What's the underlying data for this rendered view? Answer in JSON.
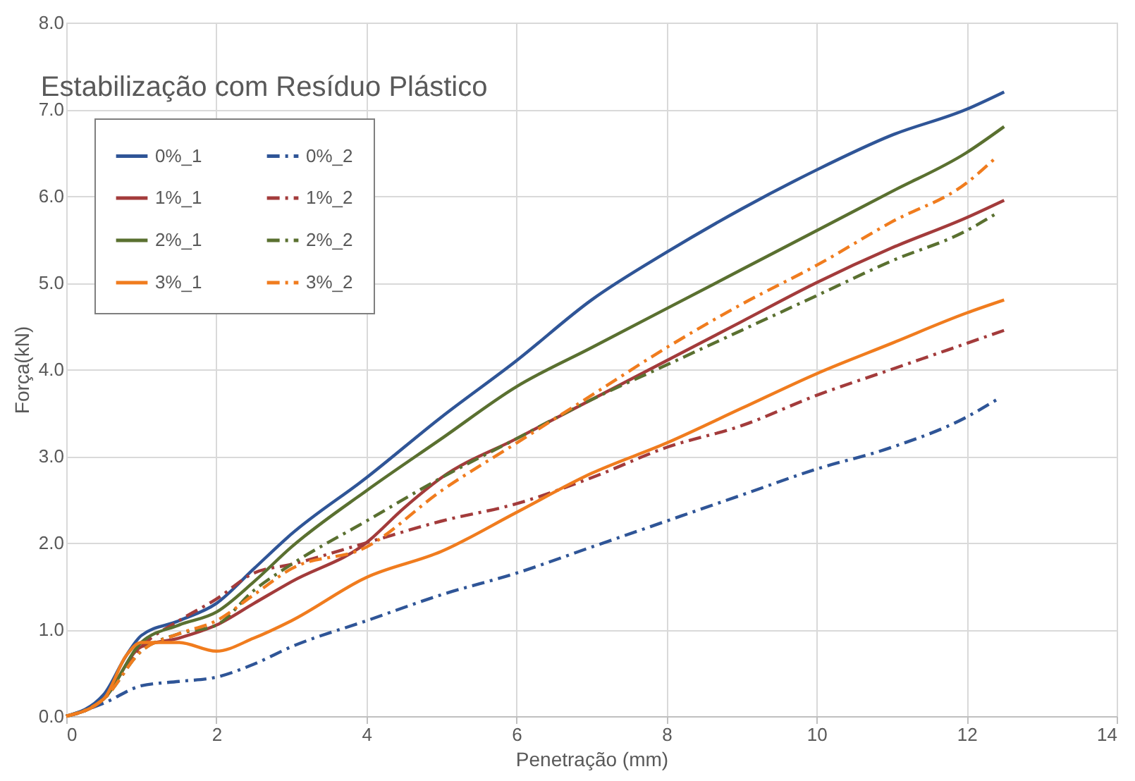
{
  "chart_data": {
    "type": "line",
    "title": "Estabilização com Resíduo Plástico",
    "xlabel": "Penetração (mm)",
    "ylabel": "Força(kN)",
    "xlim": [
      0,
      14
    ],
    "xticks": [
      0,
      2,
      4,
      6,
      8,
      10,
      12,
      14
    ],
    "ylim": [
      0,
      8
    ],
    "yticks": [
      {
        "value": 0,
        "label": "0.0"
      },
      {
        "value": 1,
        "label": "1.0"
      },
      {
        "value": 2,
        "label": "2.0"
      },
      {
        "value": 3,
        "label": "3.0"
      },
      {
        "value": 4,
        "label": "4.0"
      },
      {
        "value": 5,
        "label": "5.0"
      },
      {
        "value": 6,
        "label": "6.0"
      },
      {
        "value": 7,
        "label": "7.0"
      },
      {
        "value": 8,
        "label": "8.0"
      }
    ],
    "grid": true,
    "legend": "top left",
    "marker": "none",
    "series": [
      {
        "name": "0%_1",
        "color": "#2f5597",
        "line_style": "solid",
        "x": [
          0,
          0.5,
          0.8,
          1,
          1.5,
          2,
          2.5,
          3,
          4,
          5,
          6,
          7,
          8,
          9,
          10,
          11,
          12,
          12.5
        ],
        "values": [
          0,
          0.25,
          0.7,
          0.93,
          1.1,
          1.3,
          1.7,
          2.1,
          2.75,
          3.45,
          4.1,
          4.8,
          5.35,
          5.85,
          6.3,
          6.7,
          7.0,
          7.2
        ]
      },
      {
        "name": "0%_2",
        "color": "#2f5597",
        "line_style": "dashed",
        "x": [
          0,
          0.5,
          1,
          1.5,
          2,
          2.5,
          3,
          4,
          5,
          6,
          7,
          8,
          9,
          10,
          11,
          12,
          12.4
        ],
        "values": [
          0,
          0.15,
          0.35,
          0.4,
          0.45,
          0.6,
          0.8,
          1.1,
          1.4,
          1.65,
          1.95,
          2.25,
          2.55,
          2.85,
          3.1,
          3.45,
          3.65
        ]
      },
      {
        "name": "1%_1",
        "color": "#a33b3b",
        "line_style": "solid",
        "x": [
          0,
          0.5,
          1,
          1.5,
          2,
          2.5,
          3,
          4,
          4.5,
          5,
          6,
          7,
          8,
          9,
          10,
          11,
          12,
          12.5
        ],
        "values": [
          0,
          0.2,
          0.8,
          0.9,
          1.05,
          1.3,
          1.55,
          2.0,
          2.4,
          2.75,
          3.2,
          3.65,
          4.1,
          4.55,
          5.0,
          5.4,
          5.75,
          5.95
        ]
      },
      {
        "name": "1%_2",
        "color": "#a33b3b",
        "line_style": "dashed",
        "x": [
          0,
          0.5,
          1,
          1.5,
          2,
          2.5,
          3,
          4,
          5,
          6,
          7,
          8,
          9,
          10,
          11,
          12,
          12.5
        ],
        "values": [
          0,
          0.2,
          0.8,
          1.1,
          1.35,
          1.65,
          1.75,
          2.0,
          2.25,
          2.45,
          2.75,
          3.1,
          3.35,
          3.7,
          4.0,
          4.3,
          4.45
        ]
      },
      {
        "name": "2%_1",
        "color": "#5a7030",
        "line_style": "solid",
        "x": [
          0,
          0.5,
          1,
          1.5,
          2,
          2.5,
          3,
          4,
          5,
          6,
          7,
          8,
          9,
          10,
          11,
          12,
          12.5
        ],
        "values": [
          0,
          0.2,
          0.85,
          1.05,
          1.2,
          1.55,
          1.95,
          2.6,
          3.2,
          3.8,
          4.25,
          4.7,
          5.15,
          5.6,
          6.05,
          6.5,
          6.8
        ]
      },
      {
        "name": "2%_2",
        "color": "#5a7030",
        "line_style": "dashed",
        "x": [
          0,
          0.5,
          1,
          1.5,
          2,
          2.5,
          3,
          4,
          5,
          6,
          7,
          8,
          9,
          10,
          11,
          12,
          12.4
        ],
        "values": [
          0,
          0.2,
          0.75,
          0.95,
          1.05,
          1.45,
          1.75,
          2.25,
          2.75,
          3.2,
          3.65,
          4.05,
          4.45,
          4.85,
          5.25,
          5.6,
          5.8
        ]
      },
      {
        "name": "3%_1",
        "color": "#f07c1e",
        "line_style": "solid",
        "x": [
          0,
          0.5,
          0.8,
          1,
          1.5,
          2,
          2.5,
          3,
          4,
          5,
          6,
          7,
          8,
          9,
          10,
          11,
          12,
          12.5
        ],
        "values": [
          0,
          0.2,
          0.7,
          0.85,
          0.85,
          0.75,
          0.9,
          1.1,
          1.6,
          1.9,
          2.35,
          2.8,
          3.15,
          3.55,
          3.95,
          4.3,
          4.65,
          4.8
        ]
      },
      {
        "name": "3%_2",
        "color": "#f07c1e",
        "line_style": "dashed",
        "x": [
          0,
          0.5,
          1,
          1.5,
          2,
          2.5,
          3,
          4,
          5,
          6,
          7,
          8,
          9,
          10,
          11,
          12,
          12.4
        ],
        "values": [
          0,
          0.2,
          0.75,
          0.95,
          1.1,
          1.4,
          1.7,
          1.95,
          2.6,
          3.15,
          3.7,
          4.25,
          4.75,
          5.2,
          5.7,
          6.15,
          6.45
        ]
      }
    ]
  }
}
